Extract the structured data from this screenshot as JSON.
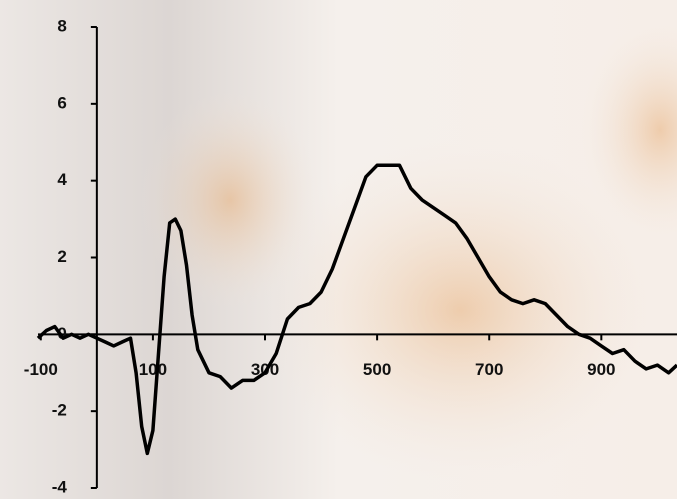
{
  "chart_data": {
    "type": "line",
    "x": [
      -105,
      -90,
      -75,
      -60,
      -45,
      -30,
      -15,
      0,
      15,
      30,
      45,
      60,
      70,
      80,
      90,
      100,
      110,
      120,
      130,
      140,
      150,
      160,
      170,
      180,
      200,
      220,
      240,
      260,
      280,
      300,
      320,
      340,
      360,
      380,
      400,
      420,
      440,
      460,
      480,
      500,
      520,
      540,
      560,
      580,
      600,
      620,
      640,
      660,
      680,
      700,
      720,
      740,
      760,
      780,
      800,
      820,
      840,
      860,
      880,
      900,
      920,
      940,
      960,
      980,
      1000,
      1020,
      1035
    ],
    "series": [
      {
        "color": "#000000",
        "values": [
          -0.1,
          0.1,
          0.2,
          -0.1,
          0.0,
          -0.1,
          0.0,
          -0.1,
          -0.2,
          -0.3,
          -0.2,
          -0.1,
          -1.0,
          -2.4,
          -3.1,
          -2.5,
          -0.5,
          1.5,
          2.9,
          3.0,
          2.7,
          1.8,
          0.5,
          -0.4,
          -1.0,
          -1.1,
          -1.4,
          -1.2,
          -1.2,
          -1.0,
          -0.5,
          0.4,
          0.7,
          0.8,
          1.1,
          1.7,
          2.5,
          3.3,
          4.1,
          4.4,
          4.4,
          4.4,
          3.8,
          3.5,
          3.3,
          3.1,
          2.9,
          2.5,
          2.0,
          1.5,
          1.1,
          0.9,
          0.8,
          0.9,
          0.8,
          0.5,
          0.2,
          0.0,
          -0.1,
          -0.3,
          -0.5,
          -0.4,
          -0.7,
          -0.9,
          -0.8,
          -1.0,
          -0.8
        ]
      }
    ],
    "xlim": [
      -105,
      1035
    ],
    "ylim": [
      -4,
      8
    ],
    "xticks": [
      -100,
      100,
      300,
      500,
      700,
      900
    ],
    "yticks": [
      -4,
      -2,
      0,
      2,
      4,
      6,
      8
    ]
  }
}
